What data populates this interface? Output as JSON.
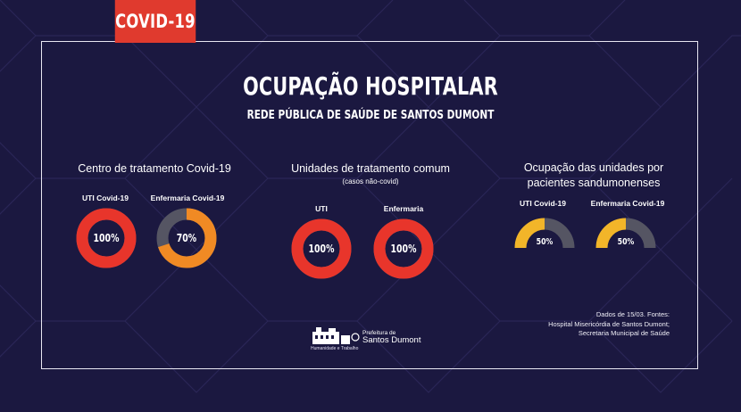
{
  "tag": "COVID-19",
  "title": "OCUPAÇÃO HOSPITALAR",
  "subtitle": "REDE PÚBLICA DE SAÚDE DE SANTOS DUMONT",
  "colors": {
    "background": "#1b1840",
    "tag": "#e03a2e",
    "red": "#e8352b",
    "orange": "#f08a24",
    "yellow": "#f2b529",
    "gray": "#555563"
  },
  "sections": [
    {
      "title": "Centro de tratamento Covid-19",
      "note": "",
      "gauges": [
        {
          "label": "UTI Covid-19",
          "value": 100,
          "text": "100%",
          "color": "#e8352b"
        },
        {
          "label": "Enfermaria Covid-19",
          "value": 70,
          "text": "70%",
          "color": "#f08a24"
        }
      ]
    },
    {
      "title": "Unidades de tratamento comum",
      "note": "(casos não-covid)",
      "gauges": [
        {
          "label": "UTI",
          "value": 100,
          "text": "100%",
          "color": "#e8352b"
        },
        {
          "label": "Enfermaria",
          "value": 100,
          "text": "100%",
          "color": "#e8352b"
        }
      ]
    },
    {
      "title_line1": "Ocupação das unidades por",
      "title_line2": "pacientes sandumonenses",
      "gauges": [
        {
          "label": "UTI Covid-19",
          "value": 50,
          "text": "50%",
          "color": "#f2b529"
        },
        {
          "label": "Enfermaria Covid-19",
          "value": 50,
          "text": "50%",
          "color": "#f2b529"
        }
      ]
    }
  ],
  "source": {
    "line1": "Dados de 15/03. Fontes:",
    "line2": "Hospital Misericórdia de Santos Dumont;",
    "line3": "Secretaria Municipal de Saúde"
  },
  "logo": {
    "line1": "Prefeitura de",
    "line2": "Santos Dumont",
    "motto": "Humanidade e Trabalho"
  }
}
